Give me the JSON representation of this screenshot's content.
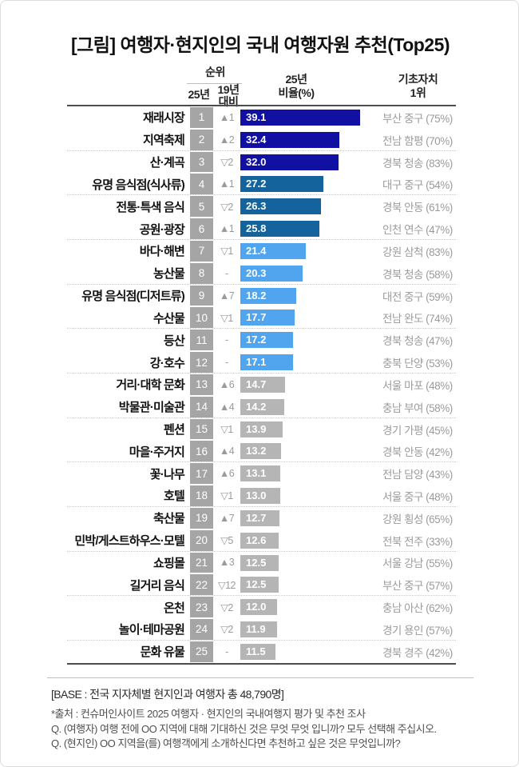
{
  "title": "[그림] 여행자·현지인의 국내 여행자원 추천(Top25)",
  "header": {
    "rank_group": "순위",
    "rank_sub_current": "25년",
    "rank_sub_change_line1": "19년",
    "rank_sub_change_line2": "대비",
    "value_col_line1": "25년",
    "value_col_line2": "비율(%)",
    "region_col_line1": "기초자치",
    "region_col_line2": "1위"
  },
  "palette": {
    "navy": "#1110a2",
    "blue": "#15639d",
    "sky": "#51a5ee",
    "gray": "#b5b5b5",
    "rank_bg": "#a5a5a5",
    "muted_text": "#9b9b9b"
  },
  "chart_data": {
    "type": "bar",
    "orientation": "horizontal",
    "title": "여행자·현지인의 국내 여행자원 추천(Top25)",
    "unit": "%",
    "xlim": [
      0,
      40
    ],
    "value_label": "25년 비율(%)",
    "rows": [
      {
        "rank": 1,
        "label": "재래시장",
        "change": "▲1",
        "value": 39.1,
        "region": "부산 중구 (75%)",
        "tier": "navy"
      },
      {
        "rank": 2,
        "label": "지역축제",
        "change": "▲2",
        "value": 32.4,
        "region": "전남 함평 (70%)",
        "tier": "navy"
      },
      {
        "rank": 3,
        "label": "산·계곡",
        "change": "▽2",
        "value": 32.0,
        "region": "경북 청송 (83%)",
        "tier": "navy"
      },
      {
        "rank": 4,
        "label": "유명 음식점(식사류)",
        "change": "▲1",
        "value": 27.2,
        "region": "대구 중구 (54%)",
        "tier": "blue"
      },
      {
        "rank": 5,
        "label": "전통·특색 음식",
        "change": "▽2",
        "value": 26.3,
        "region": "경북 안동 (61%)",
        "tier": "blue"
      },
      {
        "rank": 6,
        "label": "공원·광장",
        "change": "▲1",
        "value": 25.8,
        "region": "인천 연수 (47%)",
        "tier": "blue"
      },
      {
        "rank": 7,
        "label": "바다·해변",
        "change": "▽1",
        "value": 21.4,
        "region": "강원 삼척 (83%)",
        "tier": "sky"
      },
      {
        "rank": 8,
        "label": "농산물",
        "change": "-",
        "value": 20.3,
        "region": "경북 청송 (58%)",
        "tier": "sky"
      },
      {
        "rank": 9,
        "label": "유명 음식점(디저트류)",
        "change": "▲7",
        "value": 18.2,
        "region": "대전 중구 (59%)",
        "tier": "sky"
      },
      {
        "rank": 10,
        "label": "수산물",
        "change": "▽1",
        "value": 17.7,
        "region": "전남 완도 (74%)",
        "tier": "sky"
      },
      {
        "rank": 11,
        "label": "등산",
        "change": "-",
        "value": 17.2,
        "region": "경북 청송 (47%)",
        "tier": "sky"
      },
      {
        "rank": 12,
        "label": "강·호수",
        "change": "-",
        "value": 17.1,
        "region": "충북 단양 (53%)",
        "tier": "sky"
      },
      {
        "rank": 13,
        "label": "거리·대학 문화",
        "change": "▲6",
        "value": 14.7,
        "region": "서울 마포 (48%)",
        "tier": "gray"
      },
      {
        "rank": 14,
        "label": "박물관·미술관",
        "change": "▲4",
        "value": 14.2,
        "region": "충남 부여 (58%)",
        "tier": "gray"
      },
      {
        "rank": 15,
        "label": "펜션",
        "change": "▽1",
        "value": 13.9,
        "region": "경기 가평 (45%)",
        "tier": "gray"
      },
      {
        "rank": 16,
        "label": "마을·주거지",
        "change": "▲4",
        "value": 13.2,
        "region": "경북 안동 (42%)",
        "tier": "gray"
      },
      {
        "rank": 17,
        "label": "꽃·나무",
        "change": "▲6",
        "value": 13.1,
        "region": "전남 담양 (43%)",
        "tier": "gray"
      },
      {
        "rank": 18,
        "label": "호텔",
        "change": "▽1",
        "value": 13.0,
        "region": "서울 중구 (48%)",
        "tier": "gray"
      },
      {
        "rank": 19,
        "label": "축산물",
        "change": "▲7",
        "value": 12.7,
        "region": "강원 횡성 (65%)",
        "tier": "gray"
      },
      {
        "rank": 20,
        "label": "민박/게스트하우스·모텔",
        "change": "▽5",
        "value": 12.6,
        "region": "전북 전주 (33%)",
        "tier": "gray"
      },
      {
        "rank": 21,
        "label": "쇼핑몰",
        "change": "▲3",
        "value": 12.5,
        "region": "서울 강남 (55%)",
        "tier": "gray"
      },
      {
        "rank": 22,
        "label": "길거리 음식",
        "change": "▽12",
        "value": 12.5,
        "region": "부산 중구 (57%)",
        "tier": "gray"
      },
      {
        "rank": 23,
        "label": "온천",
        "change": "▽2",
        "value": 12.0,
        "region": "충남 아산 (62%)",
        "tier": "gray"
      },
      {
        "rank": 24,
        "label": "놀이·테마공원",
        "change": "▽2",
        "value": 11.9,
        "region": "경기 용인 (57%)",
        "tier": "gray"
      },
      {
        "rank": 25,
        "label": "문화 유물",
        "change": "-",
        "value": 11.5,
        "region": "경북 경주 (42%)",
        "tier": "gray"
      }
    ]
  },
  "footer": {
    "base": "[BASE : 전국 지자체별 현지인과 여행자 총 48,790명]",
    "source": "*출처 : 컨슈머인사이트 2025 여행자 · 현지인의 국내여행지 평가 및 추천 조사",
    "q1": "Q. (여행자) 여행 전에 OO 지역에 대해 기대하신 것은 무엇 무엇 입니까? 모두 선택해 주십시오.",
    "q2": "Q. (현지인) OO 지역을(를) 여행객에게 소개하신다면 추천하고 싶은 것은 무엇입니까?"
  }
}
